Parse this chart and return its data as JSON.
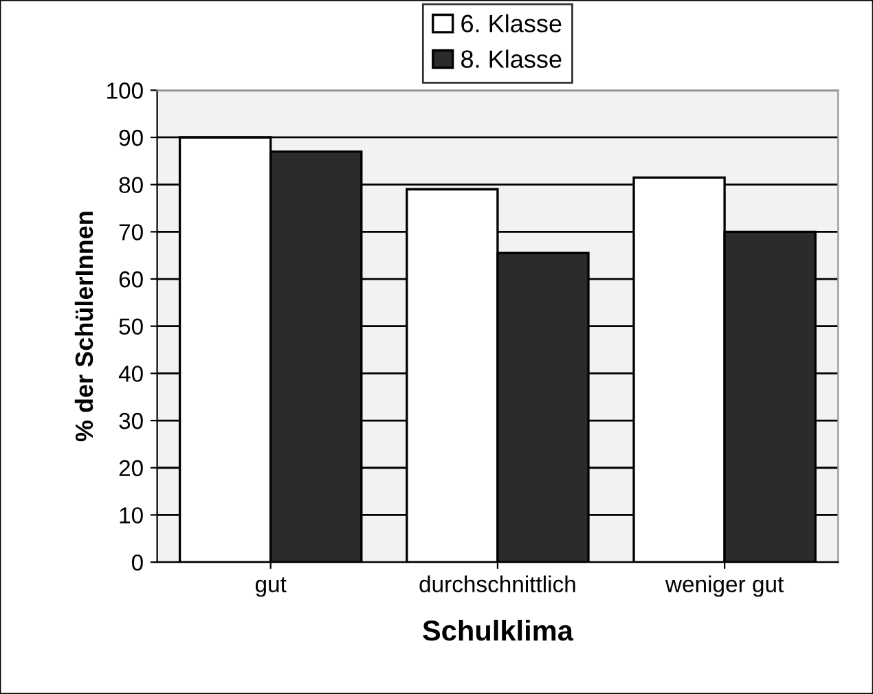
{
  "chart_data": {
    "type": "bar",
    "xlabel": "Schulklima",
    "ylabel": "% der SchülerInnen",
    "categories": [
      "gut",
      "durchschnittlich",
      "weniger gut"
    ],
    "series": [
      {
        "name": "6. Klasse",
        "color": "#ffffff",
        "values": [
          90,
          79,
          81.5
        ]
      },
      {
        "name": "8. Klasse",
        "color": "#2b2b2b",
        "values": [
          87,
          65.5,
          70
        ]
      }
    ],
    "ylim": [
      0,
      100
    ],
    "yticks": [
      0,
      10,
      20,
      30,
      40,
      50,
      60,
      70,
      80,
      90,
      100
    ],
    "grid": "y",
    "legend": "top"
  }
}
